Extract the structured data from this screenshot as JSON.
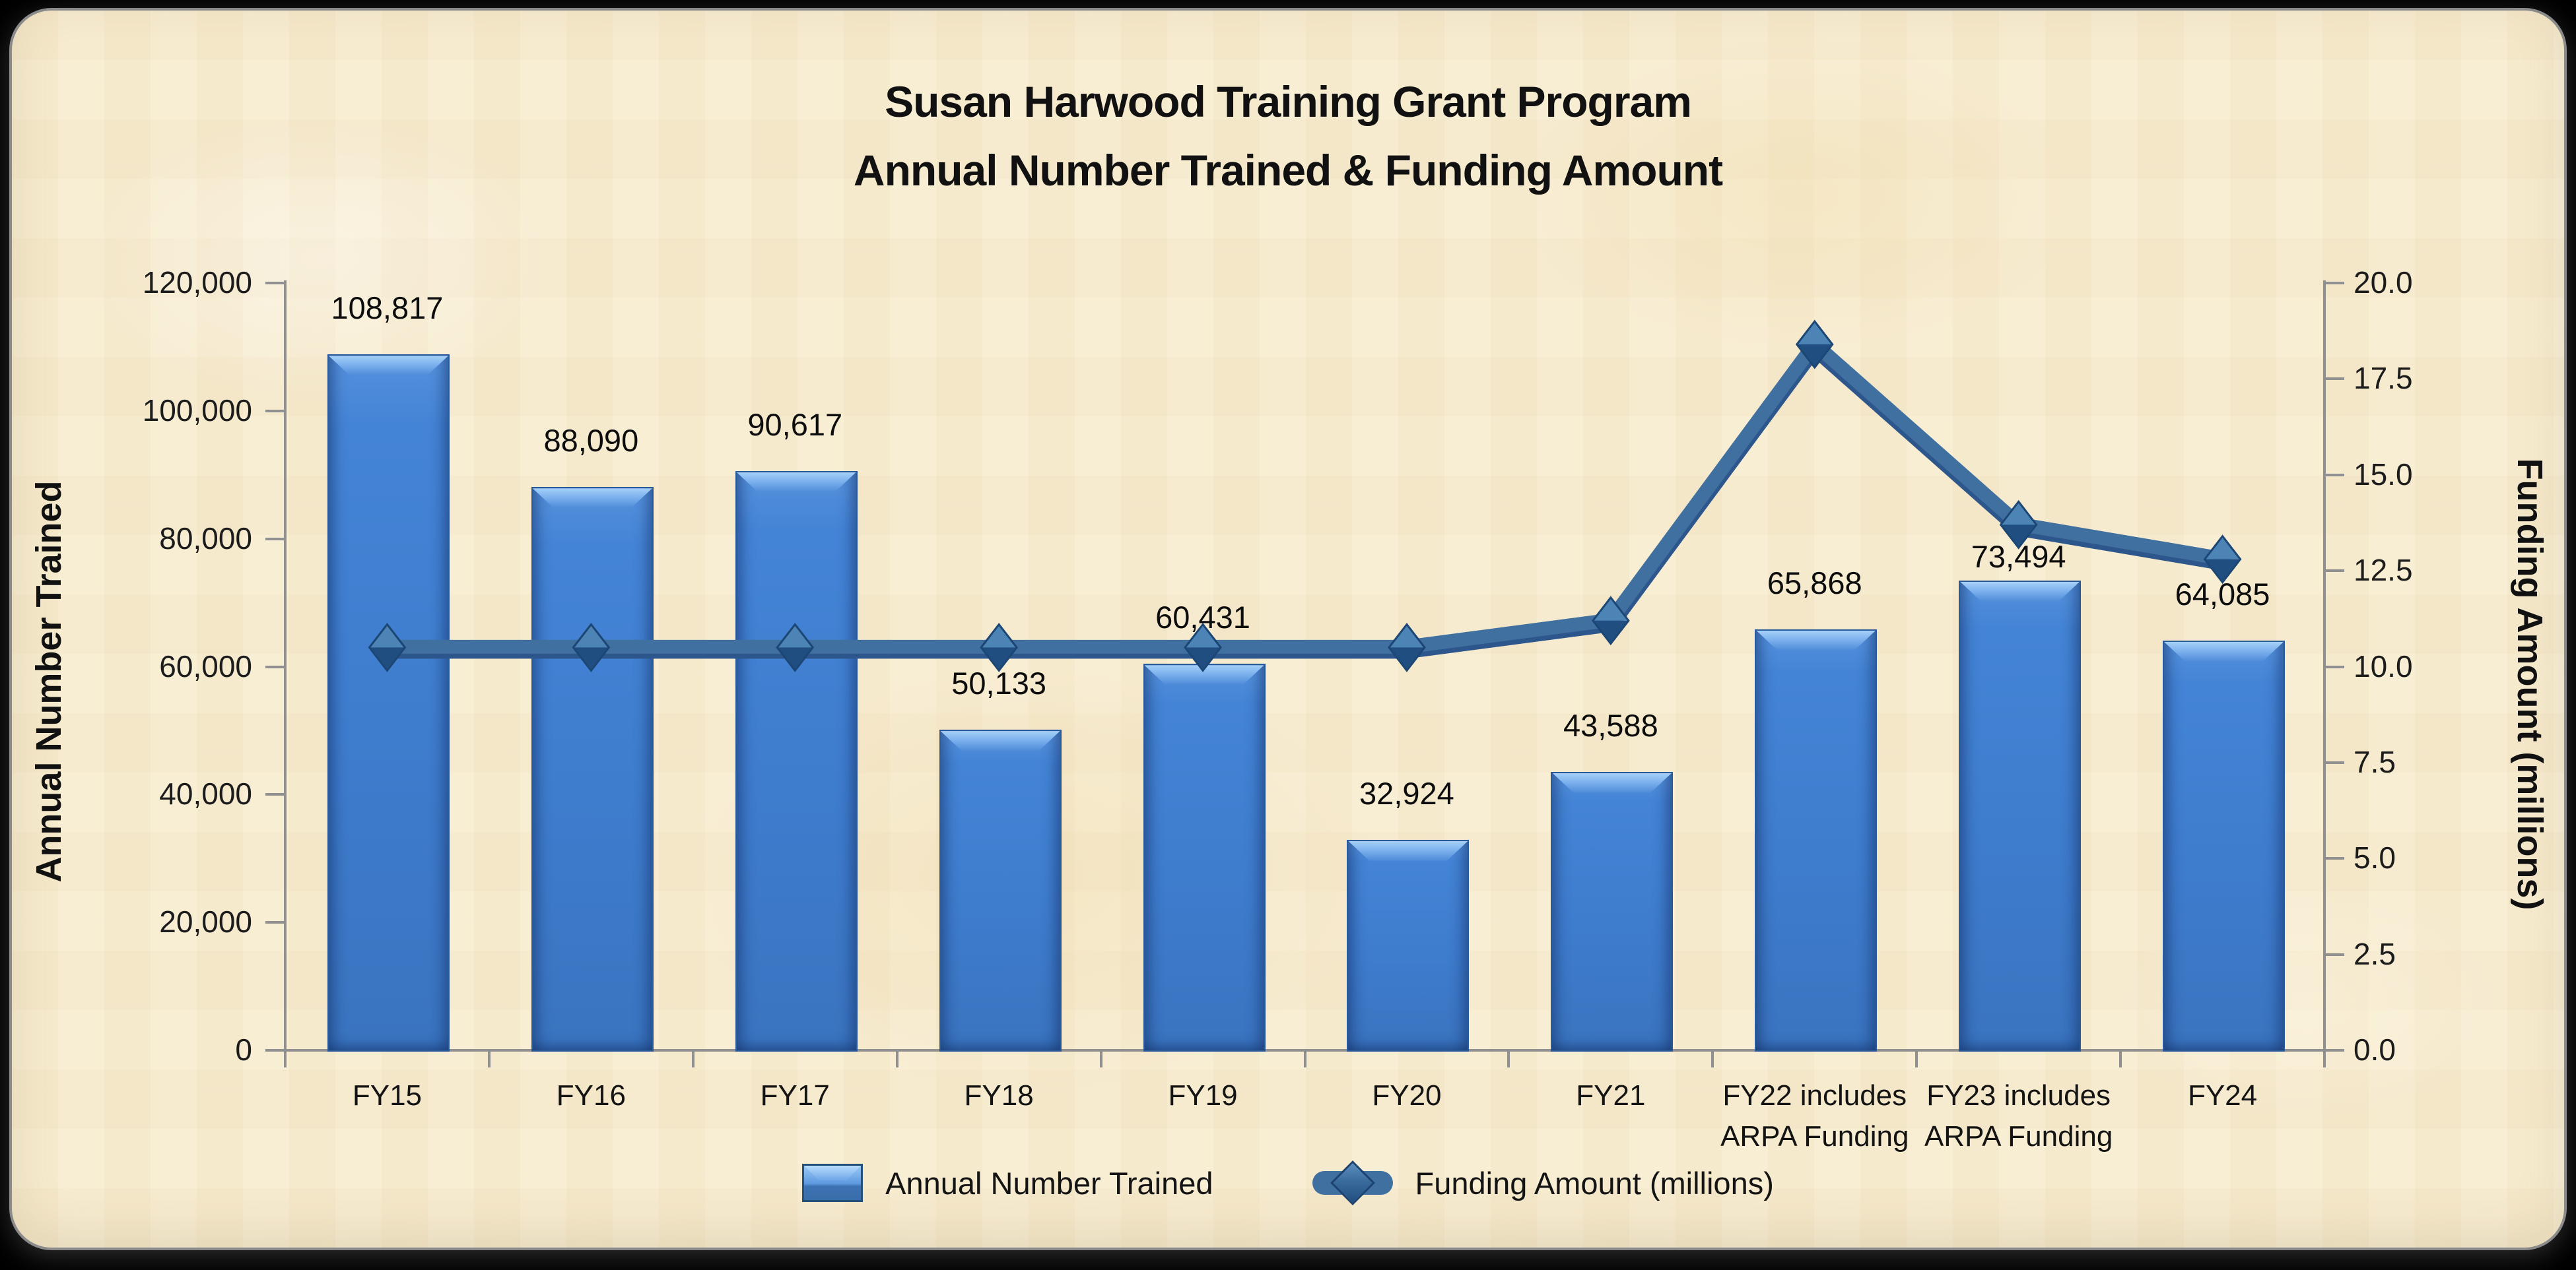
{
  "window": {
    "background": "#000000",
    "panel_background": "#f8ecd0",
    "panel_border": "#8a8a8a"
  },
  "title": {
    "line1": "Susan Harwood Training Grant Program",
    "line2": "Annual Number Trained & Funding Amount"
  },
  "chart_data": {
    "type": "bar",
    "subtype": "bar-and-line-combo",
    "categories": [
      "FY15",
      "FY16",
      "FY17",
      "FY18",
      "FY19",
      "FY20",
      "FY21",
      "FY22 includes\nARPA Funding",
      "FY23 includes\nARPA Funding",
      "FY24"
    ],
    "series": [
      {
        "name": "Annual Number Trained",
        "type": "bar",
        "axis": "left",
        "values": [
          108817,
          88090,
          90617,
          50133,
          60431,
          32924,
          43588,
          65868,
          73494,
          64085
        ],
        "labels": [
          "108,817",
          "88,090",
          "90,617",
          "50,133",
          "60,431",
          "32,924",
          "43,588",
          "65,868",
          "73,494",
          "64,085"
        ],
        "color": "#3f7dcd"
      },
      {
        "name": "Funding Amount (millions)",
        "type": "line",
        "axis": "right",
        "values": [
          10.5,
          10.5,
          10.5,
          10.5,
          10.5,
          10.5,
          11.2,
          18.4,
          13.7,
          12.8
        ],
        "color": "#40709f",
        "marker": "diamond"
      }
    ],
    "left_axis": {
      "title": "Annual Number Trained",
      "min": 0,
      "max": 120000,
      "step": 20000,
      "tick_labels": [
        "0",
        "20,000",
        "40,000",
        "60,000",
        "80,000",
        "100,000",
        "120,000"
      ]
    },
    "right_axis": {
      "title": "Funding Amount (millions)",
      "min": 0,
      "max": 20,
      "step": 2.5,
      "tick_labels": [
        "0.0",
        "2.5",
        "5.0",
        "7.5",
        "10.0",
        "12.5",
        "15.0",
        "17.5",
        "20.0"
      ]
    },
    "grid": false,
    "legend_position": "bottom",
    "legend": [
      {
        "label": "Annual Number Trained",
        "marker": "bar-swatch"
      },
      {
        "label": "Funding Amount (millions)",
        "marker": "line-diamond"
      }
    ]
  }
}
